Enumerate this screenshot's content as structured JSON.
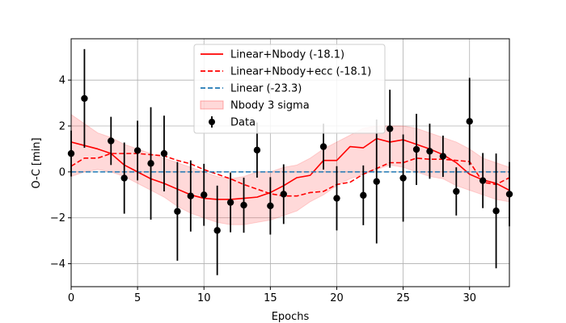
{
  "chart_data": {
    "type": "line",
    "xlabel": "Epochs",
    "ylabel": "O-C [min]",
    "xlim": [
      0,
      33
    ],
    "ylim": [
      -5,
      5.8
    ],
    "xticks": [
      0,
      5,
      10,
      15,
      20,
      25,
      30
    ],
    "yticks": [
      -4,
      -2,
      0,
      2,
      4
    ],
    "tick_labels_x": [
      "0",
      "5",
      "10",
      "15",
      "20",
      "25",
      "30"
    ],
    "tick_labels_y": [
      "−4",
      "−2",
      "0",
      "2",
      "4"
    ],
    "grid": true,
    "legend_position": "top-center",
    "legend": [
      {
        "label": "Linear+Nbody (-18.1)",
        "style": "solid-line",
        "color": "#ff0000"
      },
      {
        "label": "Linear+Nbody+ecc (-18.1)",
        "style": "dashed-line",
        "color": "#ff0000"
      },
      {
        "label": "Linear (-23.3)",
        "style": "dashed-line",
        "color": "#1f77b4"
      },
      {
        "label": "Nbody 3 sigma",
        "style": "band",
        "color": "#ff0000"
      },
      {
        "label": "Data",
        "style": "errorbar-point",
        "color": "#000000"
      }
    ],
    "series": [
      {
        "name": "Linear+Nbody (-18.1)",
        "kind": "line",
        "color": "#ff0000",
        "dash": "solid",
        "x": [
          0,
          1,
          2,
          3,
          4,
          5,
          6,
          7,
          8,
          9,
          10,
          11,
          12,
          13,
          14,
          15,
          16,
          17,
          18,
          19,
          20,
          21,
          22,
          23,
          24,
          25,
          26,
          27,
          28,
          29,
          30,
          31,
          32,
          33
        ],
        "y": [
          1.3,
          1.15,
          1.0,
          0.8,
          0.3,
          0.0,
          -0.3,
          -0.5,
          -0.75,
          -1.0,
          -1.15,
          -1.2,
          -1.2,
          -1.15,
          -1.1,
          -0.9,
          -0.6,
          -0.25,
          -0.15,
          0.5,
          0.5,
          1.1,
          1.05,
          1.45,
          1.3,
          1.4,
          1.2,
          1.0,
          0.75,
          0.4,
          -0.1,
          -0.35,
          -0.5,
          -0.8
        ]
      },
      {
        "name": "Linear+Nbody+ecc (-18.1)",
        "kind": "line",
        "color": "#ff0000",
        "dash": "dashed",
        "x": [
          0,
          1,
          2,
          3,
          4,
          5,
          6,
          7,
          8,
          9,
          10,
          11,
          12,
          13,
          14,
          15,
          16,
          17,
          18,
          19,
          20,
          21,
          22,
          23,
          24,
          25,
          26,
          27,
          28,
          29,
          30,
          31,
          32,
          33
        ],
        "y": [
          0.25,
          0.6,
          0.6,
          0.8,
          0.8,
          0.8,
          0.75,
          0.7,
          0.5,
          0.35,
          0.1,
          -0.1,
          -0.3,
          -0.55,
          -0.75,
          -0.95,
          -1.05,
          -1.05,
          -0.9,
          -0.85,
          -0.55,
          -0.45,
          -0.1,
          0.15,
          0.4,
          0.4,
          0.6,
          0.55,
          0.55,
          0.5,
          0.45,
          -0.45,
          -0.55,
          -0.25
        ]
      },
      {
        "name": "Linear (-23.3)",
        "kind": "line",
        "color": "#1f77b4",
        "dash": "dashed",
        "x": [
          0,
          33
        ],
        "y": [
          0,
          0
        ]
      }
    ],
    "band": {
      "name": "Nbody 3 sigma",
      "color": "#ff0000",
      "x": [
        0,
        1,
        2,
        3,
        4,
        5,
        6,
        7,
        8,
        9,
        10,
        11,
        12,
        13,
        14,
        15,
        16,
        17,
        18,
        19,
        20,
        21,
        22,
        23,
        24,
        25,
        26,
        27,
        28,
        29,
        30,
        31,
        32,
        33
      ],
      "upper": [
        2.5,
        2.1,
        1.7,
        1.5,
        1.2,
        1.0,
        0.8,
        0.6,
        0.4,
        0.2,
        0.0,
        -0.2,
        -0.3,
        -0.2,
        0.0,
        0.0,
        0.2,
        0.3,
        0.6,
        1.0,
        1.3,
        1.6,
        1.9,
        2.0,
        2.0,
        2.0,
        1.9,
        1.7,
        1.5,
        1.3,
        1.0,
        0.6,
        0.4,
        0.2
      ],
      "lower": [
        -0.2,
        0.0,
        0.1,
        0.0,
        -0.2,
        -0.5,
        -0.8,
        -1.1,
        -1.5,
        -1.8,
        -2.0,
        -2.2,
        -2.3,
        -2.3,
        -2.2,
        -2.1,
        -1.9,
        -1.7,
        -1.3,
        -1.0,
        -0.6,
        -0.3,
        -0.1,
        0.1,
        0.3,
        0.2,
        0.0,
        -0.2,
        -0.3,
        -0.6,
        -0.8,
        -1.0,
        -1.2,
        -1.3
      ]
    },
    "data_points": {
      "name": "Data",
      "color": "#000000",
      "points": [
        {
          "x": 0,
          "y": 0.8,
          "err": 1.0
        },
        {
          "x": 1,
          "y": 3.2,
          "err": 2.15
        },
        {
          "x": 3,
          "y": 1.35,
          "err": 1.05
        },
        {
          "x": 4,
          "y": -0.27,
          "err": 1.55
        },
        {
          "x": 5,
          "y": 0.93,
          "err": 1.3
        },
        {
          "x": 6,
          "y": 0.37,
          "err": 2.45
        },
        {
          "x": 7,
          "y": 0.8,
          "err": 1.65
        },
        {
          "x": 8,
          "y": -1.72,
          "err": 2.15
        },
        {
          "x": 9,
          "y": -1.05,
          "err": 1.55
        },
        {
          "x": 10,
          "y": -1.0,
          "err": 1.35
        },
        {
          "x": 11,
          "y": -2.55,
          "err": 1.95
        },
        {
          "x": 12,
          "y": -1.33,
          "err": 1.3
        },
        {
          "x": 13,
          "y": -1.45,
          "err": 1.2
        },
        {
          "x": 14,
          "y": 0.95,
          "err": 1.2
        },
        {
          "x": 15,
          "y": -1.48,
          "err": 1.25
        },
        {
          "x": 16,
          "y": -0.97,
          "err": 1.3
        },
        {
          "x": 19,
          "y": 1.1,
          "err": 1.0
        },
        {
          "x": 20,
          "y": -1.15,
          "err": 1.4
        },
        {
          "x": 22,
          "y": -1.02,
          "err": 1.3
        },
        {
          "x": 23,
          "y": -0.42,
          "err": 2.7
        },
        {
          "x": 24,
          "y": 1.88,
          "err": 1.7
        },
        {
          "x": 25,
          "y": -0.27,
          "err": 1.9
        },
        {
          "x": 26,
          "y": 0.98,
          "err": 1.55
        },
        {
          "x": 27,
          "y": 0.9,
          "err": 1.2
        },
        {
          "x": 28,
          "y": 0.68,
          "err": 0.9
        },
        {
          "x": 29,
          "y": -0.85,
          "err": 1.05
        },
        {
          "x": 30,
          "y": 2.2,
          "err": 1.9
        },
        {
          "x": 31,
          "y": -0.38,
          "err": 1.2
        },
        {
          "x": 32,
          "y": -1.7,
          "err": 2.5
        },
        {
          "x": 33,
          "y": -0.97,
          "err": 1.4
        }
      ]
    }
  }
}
